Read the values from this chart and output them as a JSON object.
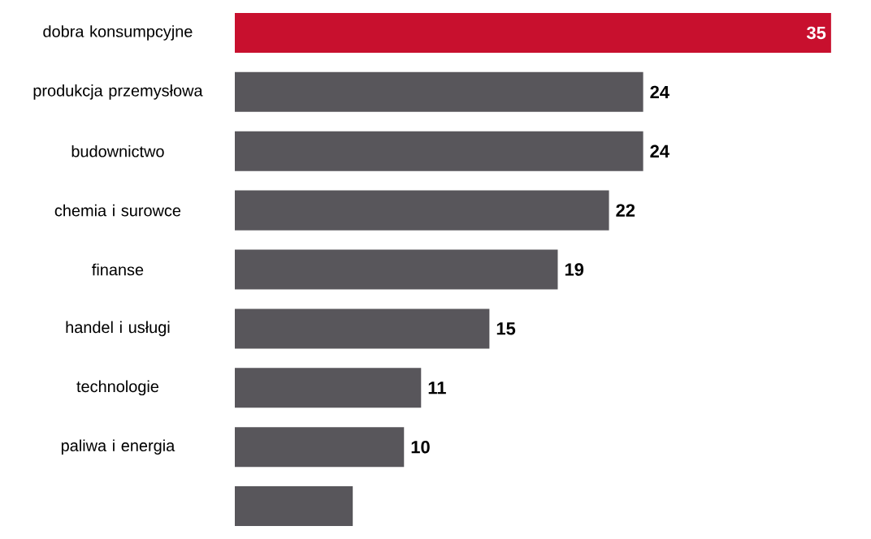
{
  "chart_data": {
    "type": "bar",
    "orientation": "horizontal",
    "categories": [
      "dobra konsumpcyjne",
      "produkcja przemysłowa",
      "budownictwo",
      "chemia i surowce",
      "finanse",
      "handel i usługi",
      "technologie",
      "paliwa i energia",
      null
    ],
    "values": [
      35,
      24,
      24,
      22,
      19,
      15,
      11,
      10,
      7
    ],
    "colors": [
      "#c8102e",
      "#58565b",
      "#58565b",
      "#58565b",
      "#58565b",
      "#58565b",
      "#58565b",
      "#58565b",
      "#58565b"
    ],
    "value_labels": [
      "35",
      "24",
      "24",
      "22",
      "19",
      "15",
      "11",
      "10",
      null
    ]
  }
}
